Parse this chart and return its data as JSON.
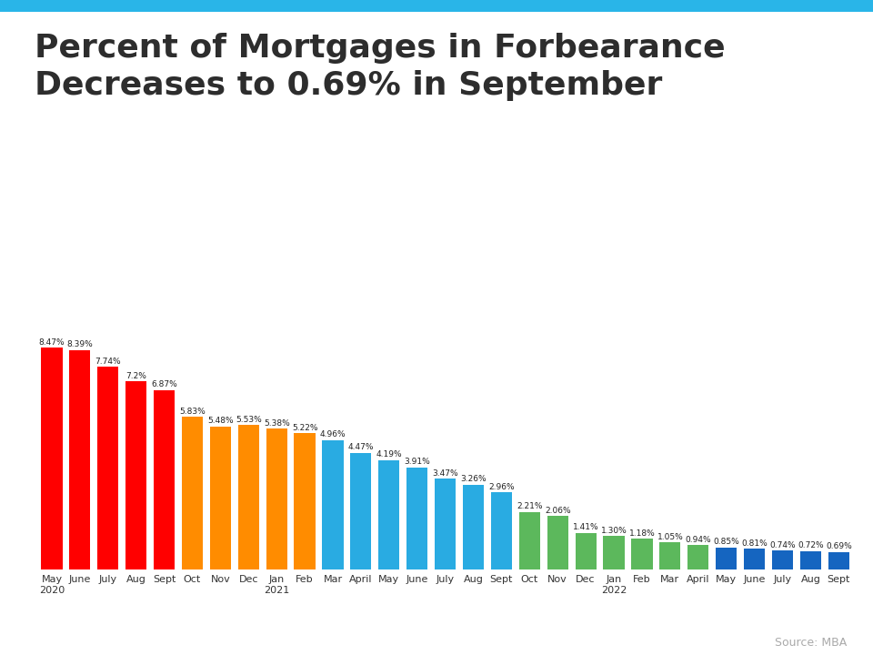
{
  "title": "Percent of Mortgages in Forbearance\nDecreases to 0.69% in September",
  "categories": [
    "May\n2020",
    "June",
    "July",
    "Aug",
    "Sept",
    "Oct",
    "Nov",
    "Dec",
    "Jan\n2021",
    "Feb",
    "Mar",
    "April",
    "May",
    "June",
    "July",
    "Aug",
    "Sept",
    "Oct",
    "Nov",
    "Dec",
    "Jan\n2022",
    "Feb",
    "Mar",
    "April",
    "May",
    "June",
    "July",
    "Aug",
    "Sept"
  ],
  "values": [
    8.47,
    8.39,
    7.74,
    7.2,
    6.87,
    5.83,
    5.48,
    5.53,
    5.38,
    5.22,
    4.96,
    4.47,
    4.19,
    3.91,
    3.47,
    3.26,
    2.96,
    2.21,
    2.06,
    1.41,
    1.3,
    1.18,
    1.05,
    0.94,
    0.85,
    0.81,
    0.74,
    0.72,
    0.69
  ],
  "colors": [
    "#ff0000",
    "#ff0000",
    "#ff0000",
    "#ff0000",
    "#ff0000",
    "#ff8c00",
    "#ff8c00",
    "#ff8c00",
    "#ff8c00",
    "#ff8c00",
    "#29abe2",
    "#29abe2",
    "#29abe2",
    "#29abe2",
    "#29abe2",
    "#29abe2",
    "#29abe2",
    "#5cb85c",
    "#5cb85c",
    "#5cb85c",
    "#5cb85c",
    "#5cb85c",
    "#5cb85c",
    "#5cb85c",
    "#1565c0",
    "#1565c0",
    "#1565c0",
    "#1565c0",
    "#1565c0"
  ],
  "value_labels": [
    "8.47%",
    "8.39%",
    "7.74%",
    "7.2%",
    "6.87%",
    "5.83%",
    "5.48%",
    "5.53%",
    "5.38%",
    "5.22%",
    "4.96%",
    "4.47%",
    "4.19%",
    "3.91%",
    "3.47%",
    "3.26%",
    "2.96%",
    "2.21%",
    "2.06%",
    "1.41%",
    "1.30%",
    "1.18%",
    "1.05%",
    "0.94%",
    "0.85%",
    "0.81%",
    "0.74%",
    "0.72%",
    "0.69%"
  ],
  "source_text": "Source: MBA",
  "background_color": "#ffffff",
  "title_color": "#2d2d2d",
  "bar_label_fontsize": 6.5,
  "title_fontsize": 26,
  "header_bar_color": "#29b5e8",
  "header_bar_height": 0.018
}
